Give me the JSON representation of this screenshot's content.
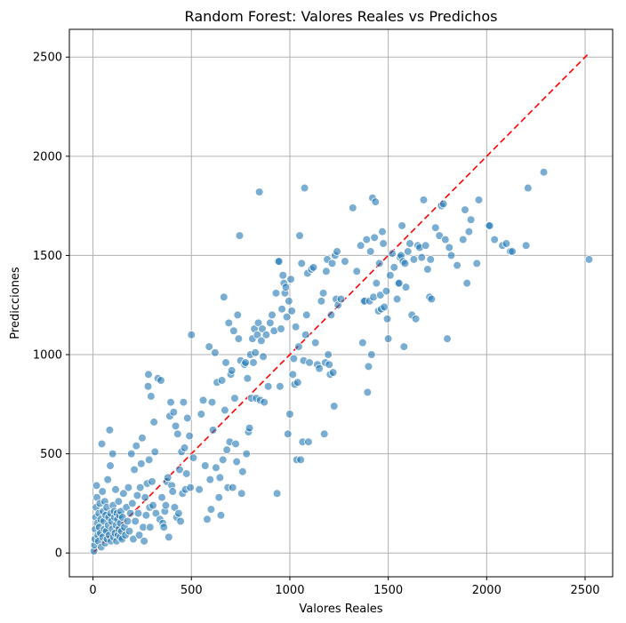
{
  "chart_data": {
    "type": "scatter",
    "title": "Random Forest: Valores Reales vs Predichos",
    "xlabel": "Valores Reales",
    "ylabel": "Predicciones",
    "xlim": [
      -120,
      2640
    ],
    "ylim": [
      -120,
      2640
    ],
    "xticks": [
      0,
      500,
      1000,
      1500,
      2000,
      2500
    ],
    "yticks": [
      0,
      500,
      1000,
      1500,
      2000,
      2500
    ],
    "grid": true,
    "point_color": "#1f77b4",
    "reference_line": {
      "color": "#ff0000",
      "style": "dashed",
      "from": [
        5,
        5
      ],
      "to": [
        2515,
        2515
      ]
    },
    "points": [
      [
        5,
        10
      ],
      [
        8,
        40
      ],
      [
        10,
        70
      ],
      [
        12,
        120
      ],
      [
        14,
        180
      ],
      [
        16,
        230
      ],
      [
        18,
        340
      ],
      [
        20,
        280
      ],
      [
        22,
        150
      ],
      [
        25,
        90
      ],
      [
        28,
        60
      ],
      [
        30,
        200
      ],
      [
        32,
        130
      ],
      [
        35,
        250
      ],
      [
        38,
        100
      ],
      [
        40,
        170
      ],
      [
        42,
        30
      ],
      [
        45,
        550
      ],
      [
        48,
        310
      ],
      [
        50,
        80
      ],
      [
        52,
        210
      ],
      [
        55,
        160
      ],
      [
        58,
        120
      ],
      [
        60,
        260
      ],
      [
        62,
        50
      ],
      [
        65,
        190
      ],
      [
        68,
        110
      ],
      [
        70,
        230
      ],
      [
        72,
        70
      ],
      [
        75,
        370
      ],
      [
        78,
        140
      ],
      [
        80,
        180
      ],
      [
        82,
        90
      ],
      [
        85,
        620
      ],
      [
        88,
        440
      ],
      [
        90,
        200
      ],
      [
        92,
        60
      ],
      [
        95,
        160
      ],
      [
        98,
        120
      ],
      [
        100,
        500
      ],
      [
        102,
        240
      ],
      [
        105,
        80
      ],
      [
        108,
        210
      ],
      [
        110,
        180
      ],
      [
        112,
        100
      ],
      [
        115,
        320
      ],
      [
        118,
        140
      ],
      [
        120,
        60
      ],
      [
        122,
        200
      ],
      [
        125,
        170
      ],
      [
        128,
        90
      ],
      [
        130,
        260
      ],
      [
        132,
        120
      ],
      [
        135,
        190
      ],
      [
        138,
        80
      ],
      [
        140,
        150
      ],
      [
        142,
        210
      ],
      [
        145,
        110
      ],
      [
        148,
        70
      ],
      [
        150,
        180
      ],
      [
        155,
        300
      ],
      [
        160,
        130
      ],
      [
        165,
        90
      ],
      [
        170,
        230
      ],
      [
        175,
        160
      ],
      [
        180,
        330
      ],
      [
        185,
        110
      ],
      [
        190,
        200
      ],
      [
        195,
        500
      ],
      [
        200,
        250
      ],
      [
        205,
        70
      ],
      [
        210,
        420
      ],
      [
        215,
        160
      ],
      [
        220,
        540
      ],
      [
        225,
        290
      ],
      [
        230,
        200
      ],
      [
        235,
        90
      ],
      [
        240,
        330
      ],
      [
        245,
        450
      ],
      [
        250,
        580
      ],
      [
        255,
        130
      ],
      [
        260,
        60
      ],
      [
        265,
        280
      ],
      [
        270,
        190
      ],
      [
        275,
        350
      ],
      [
        280,
        840
      ],
      [
        282,
        900
      ],
      [
        285,
        470
      ],
      [
        288,
        230
      ],
      [
        290,
        130
      ],
      [
        295,
        790
      ],
      [
        300,
        360
      ],
      [
        305,
        240
      ],
      [
        310,
        660
      ],
      [
        315,
        510
      ],
      [
        320,
        200
      ],
      [
        330,
        880
      ],
      [
        340,
        170
      ],
      [
        345,
        870
      ],
      [
        350,
        280
      ],
      [
        355,
        150
      ],
      [
        360,
        130
      ],
      [
        365,
        210
      ],
      [
        370,
        240
      ],
      [
        375,
        360
      ],
      [
        380,
        380
      ],
      [
        385,
        80
      ],
      [
        390,
        690
      ],
      [
        395,
        760
      ],
      [
        400,
        340
      ],
      [
        405,
        310
      ],
      [
        410,
        710
      ],
      [
        415,
        230
      ],
      [
        420,
        640
      ],
      [
        425,
        180
      ],
      [
        430,
        600
      ],
      [
        435,
        200
      ],
      [
        440,
        420
      ],
      [
        445,
        160
      ],
      [
        450,
        510
      ],
      [
        455,
        300
      ],
      [
        460,
        760
      ],
      [
        465,
        530
      ],
      [
        470,
        320
      ],
      [
        475,
        400
      ],
      [
        480,
        680
      ],
      [
        490,
        590
      ],
      [
        495,
        330
      ],
      [
        500,
        1100
      ],
      [
        510,
        480
      ],
      [
        540,
        320
      ],
      [
        550,
        700
      ],
      [
        560,
        770
      ],
      [
        570,
        440
      ],
      [
        580,
        170
      ],
      [
        590,
        1040
      ],
      [
        595,
        370
      ],
      [
        600,
        220
      ],
      [
        605,
        760
      ],
      [
        610,
        620
      ],
      [
        620,
        1010
      ],
      [
        625,
        430
      ],
      [
        630,
        860
      ],
      [
        640,
        280
      ],
      [
        645,
        380
      ],
      [
        650,
        190
      ],
      [
        655,
        870
      ],
      [
        660,
        470
      ],
      [
        665,
        1290
      ],
      [
        670,
        720
      ],
      [
        675,
        960
      ],
      [
        680,
        520
      ],
      [
        685,
        330
      ],
      [
        690,
        1160
      ],
      [
        695,
        560
      ],
      [
        700,
        900
      ],
      [
        705,
        920
      ],
      [
        710,
        330
      ],
      [
        715,
        1120
      ],
      [
        720,
        780
      ],
      [
        725,
        550
      ],
      [
        730,
        460
      ],
      [
        735,
        1200
      ],
      [
        740,
        1080
      ],
      [
        745,
        1600
      ],
      [
        750,
        970
      ],
      [
        755,
        300
      ],
      [
        760,
        410
      ],
      [
        770,
        950
      ],
      [
        775,
        960
      ],
      [
        780,
        500
      ],
      [
        785,
        880
      ],
      [
        790,
        610
      ],
      [
        795,
        630
      ],
      [
        800,
        1000
      ],
      [
        805,
        780
      ],
      [
        810,
        1080
      ],
      [
        815,
        960
      ],
      [
        820,
        1130
      ],
      [
        825,
        1010
      ],
      [
        830,
        780
      ],
      [
        835,
        1100
      ],
      [
        840,
        1160
      ],
      [
        845,
        1820
      ],
      [
        850,
        770
      ],
      [
        855,
        1070
      ],
      [
        860,
        1130
      ],
      [
        865,
        990
      ],
      [
        870,
        760
      ],
      [
        880,
        1100
      ],
      [
        890,
        840
      ],
      [
        900,
        1160
      ],
      [
        910,
        1200
      ],
      [
        920,
        1120
      ],
      [
        930,
        1310
      ],
      [
        935,
        300
      ],
      [
        940,
        1470
      ],
      [
        945,
        1470
      ],
      [
        950,
        840
      ],
      [
        955,
        1130
      ],
      [
        960,
        1230
      ],
      [
        965,
        1400
      ],
      [
        970,
        1360
      ],
      [
        975,
        1310
      ],
      [
        980,
        1340
      ],
      [
        985,
        1190
      ],
      [
        990,
        600
      ],
      [
        995,
        1270
      ],
      [
        1000,
        700
      ],
      [
        1005,
        1380
      ],
      [
        1010,
        1220
      ],
      [
        1015,
        900
      ],
      [
        1020,
        980
      ],
      [
        1025,
        850
      ],
      [
        1030,
        1140
      ],
      [
        1035,
        470
      ],
      [
        1040,
        860
      ],
      [
        1045,
        1040
      ],
      [
        1050,
        1600
      ],
      [
        1055,
        470
      ],
      [
        1060,
        1460
      ],
      [
        1065,
        560
      ],
      [
        1070,
        970
      ],
      [
        1075,
        1840
      ],
      [
        1080,
        1100
      ],
      [
        1085,
        1200
      ],
      [
        1090,
        1410
      ],
      [
        1095,
        560
      ],
      [
        1100,
        960
      ],
      [
        1110,
        1430
      ],
      [
        1120,
        1440
      ],
      [
        1130,
        1060
      ],
      [
        1140,
        950
      ],
      [
        1150,
        930
      ],
      [
        1160,
        1270
      ],
      [
        1170,
        1310
      ],
      [
        1175,
        600
      ],
      [
        1180,
        960
      ],
      [
        1185,
        1420
      ],
      [
        1190,
        1480
      ],
      [
        1195,
        1000
      ],
      [
        1200,
        950
      ],
      [
        1205,
        900
      ],
      [
        1210,
        1200
      ],
      [
        1215,
        1460
      ],
      [
        1220,
        910
      ],
      [
        1225,
        740
      ],
      [
        1230,
        1500
      ],
      [
        1235,
        1280
      ],
      [
        1240,
        1520
      ],
      [
        1245,
        1250
      ],
      [
        1260,
        1280
      ],
      [
        1280,
        1470
      ],
      [
        1320,
        1740
      ],
      [
        1340,
        1420
      ],
      [
        1360,
        1550
      ],
      [
        1370,
        1060
      ],
      [
        1375,
        1270
      ],
      [
        1380,
        1270
      ],
      [
        1390,
        1580
      ],
      [
        1395,
        810
      ],
      [
        1400,
        940
      ],
      [
        1405,
        1270
      ],
      [
        1410,
        1520
      ],
      [
        1415,
        1000
      ],
      [
        1420,
        1790
      ],
      [
        1425,
        1290
      ],
      [
        1430,
        1590
      ],
      [
        1435,
        1770
      ],
      [
        1440,
        1360
      ],
      [
        1450,
        1220
      ],
      [
        1455,
        1460
      ],
      [
        1460,
        1300
      ],
      [
        1465,
        1230
      ],
      [
        1470,
        1620
      ],
      [
        1475,
        1560
      ],
      [
        1480,
        1240
      ],
      [
        1490,
        1320
      ],
      [
        1495,
        1180
      ],
      [
        1500,
        1080
      ],
      [
        1510,
        1400
      ],
      [
        1520,
        1510
      ],
      [
        1530,
        1440
      ],
      [
        1545,
        1280
      ],
      [
        1550,
        1360
      ],
      [
        1555,
        1360
      ],
      [
        1560,
        1490
      ],
      [
        1565,
        1500
      ],
      [
        1570,
        1650
      ],
      [
        1575,
        1470
      ],
      [
        1580,
        1040
      ],
      [
        1585,
        1460
      ],
      [
        1590,
        1340
      ],
      [
        1600,
        1520
      ],
      [
        1610,
        1560
      ],
      [
        1620,
        1200
      ],
      [
        1630,
        1480
      ],
      [
        1640,
        1180
      ],
      [
        1650,
        1550
      ],
      [
        1660,
        1540
      ],
      [
        1670,
        1490
      ],
      [
        1680,
        1780
      ],
      [
        1690,
        1550
      ],
      [
        1700,
        1430
      ],
      [
        1710,
        1290
      ],
      [
        1715,
        1480
      ],
      [
        1720,
        1280
      ],
      [
        1740,
        1640
      ],
      [
        1760,
        1600
      ],
      [
        1770,
        1750
      ],
      [
        1780,
        1760
      ],
      [
        1790,
        1580
      ],
      [
        1800,
        1080
      ],
      [
        1810,
        1540
      ],
      [
        1820,
        1500
      ],
      [
        1850,
        1450
      ],
      [
        1880,
        1580
      ],
      [
        1890,
        1730
      ],
      [
        1900,
        1360
      ],
      [
        1910,
        1620
      ],
      [
        1920,
        1680
      ],
      [
        1950,
        1460
      ],
      [
        1960,
        1780
      ],
      [
        2010,
        1650
      ],
      [
        2015,
        1650
      ],
      [
        2040,
        1580
      ],
      [
        2080,
        1550
      ],
      [
        2100,
        1560
      ],
      [
        2120,
        1520
      ],
      [
        2130,
        1520
      ],
      [
        2200,
        1550
      ],
      [
        2210,
        1840
      ],
      [
        2290,
        1920
      ],
      [
        2520,
        1480
      ]
    ]
  }
}
